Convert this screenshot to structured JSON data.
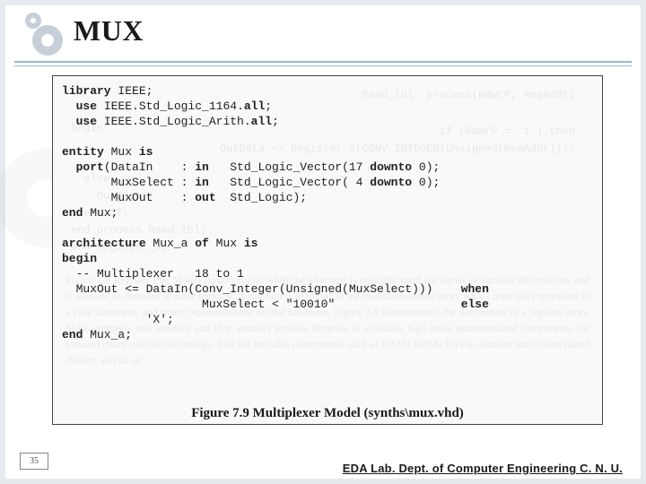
{
  "title": "MUX",
  "page_number": "35",
  "footer": "EDA Lab. Dept. of Computer Engineering C. N. U.",
  "figure_caption": "Figure 7.9  Multiplexer Model (synths\\mux.vhd)",
  "code": {
    "l01a": "library",
    "l01b": " IEEE;",
    "l02a": "  use",
    "l02b": " IEEE.Std_Logic_1164.",
    "l02c": "all",
    "l02d": ";",
    "l03a": "  use",
    "l03b": " IEEE.Std_Logic_Arith.",
    "l03c": "all",
    "l03d": ";",
    "blank1": "",
    "l04a": "entity",
    "l04b": " Mux ",
    "l04c": "is",
    "l05a": "  port",
    "l05b": "(DataIn    : ",
    "l05c": "in",
    "l05d": "   Std_Logic_Vector(17 ",
    "l05e": "downto",
    "l05f": " 0);",
    "l06a": "       MuxSelect : ",
    "l06b": "in",
    "l06c": "   Std_Logic_Vector( 4 ",
    "l06d": "downto",
    "l06e": " 0);",
    "l07a": "       MuxOut    : ",
    "l07b": "out",
    "l07c": "  Std_Logic);",
    "l08a": "end",
    "l08b": " Mux;",
    "blank2": "",
    "l09a": "architecture",
    "l09b": " Mux_a ",
    "l09c": "of",
    "l09d": " Mux ",
    "l09e": "is",
    "l10a": "begin",
    "l11": "  -- Multiplexer   18 to 1",
    "l12a": "  MuxOut <= DataIn(Conv_Integer(Unsigned(MuxSelect)))    ",
    "l12b": "when",
    "l13a": "                    MuxSelect < \"10010\"                  ",
    "l13b": "else",
    "l14": "            'X';",
    "l15a": "end",
    "l15b": " Mux_a;"
  },
  "colors": {
    "slide_border": "#e6e9ee",
    "rule": "#9db5cc",
    "ring": "#c7cfd8",
    "text": "#1a1a1a",
    "code_border": "#444444",
    "code_bg": "#f9f9f8"
  },
  "fonts": {
    "title_family": "Georgia, Times New Roman, serif",
    "title_size_pt": 24,
    "code_family": "Courier New, monospace",
    "code_size_pt": 10,
    "caption_size_pt": 11
  }
}
